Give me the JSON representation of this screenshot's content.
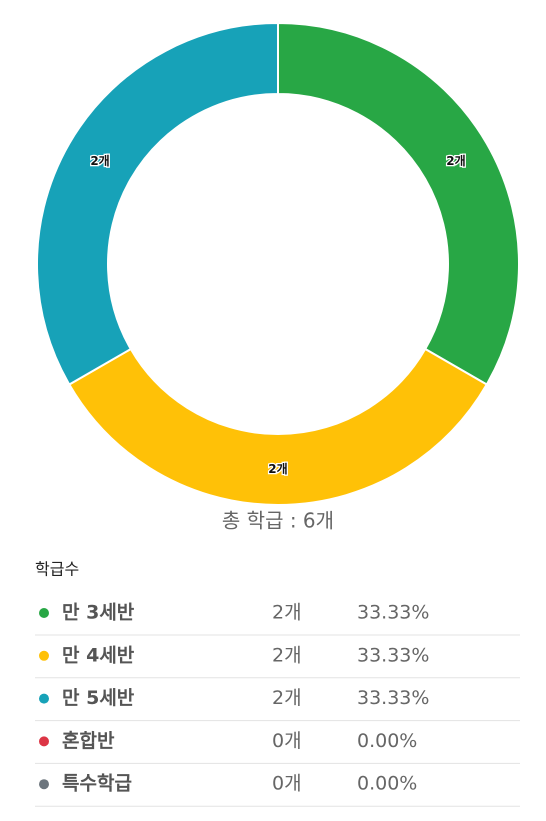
{
  "chart_data": {
    "type": "donut",
    "categories": [
      "만 3세반",
      "만 4세반",
      "만 5세반",
      "혼합반",
      "특수학급"
    ],
    "values": [
      2,
      2,
      2,
      0,
      0
    ],
    "value_labels": [
      "2개",
      "2개",
      "2개",
      "0개",
      "0개"
    ],
    "shares": [
      33.33,
      33.33,
      33.33,
      0,
      0
    ],
    "share_labels": [
      "33.33%",
      "33.33%",
      "33.33%",
      "0.00%",
      "0.00%"
    ],
    "colors": [
      "#28a745",
      "#ffc107",
      "#17a2b8",
      "#dc3545",
      "#6c757d"
    ],
    "total_label": "총 학급 : 6개",
    "legend_title": "학급수"
  }
}
